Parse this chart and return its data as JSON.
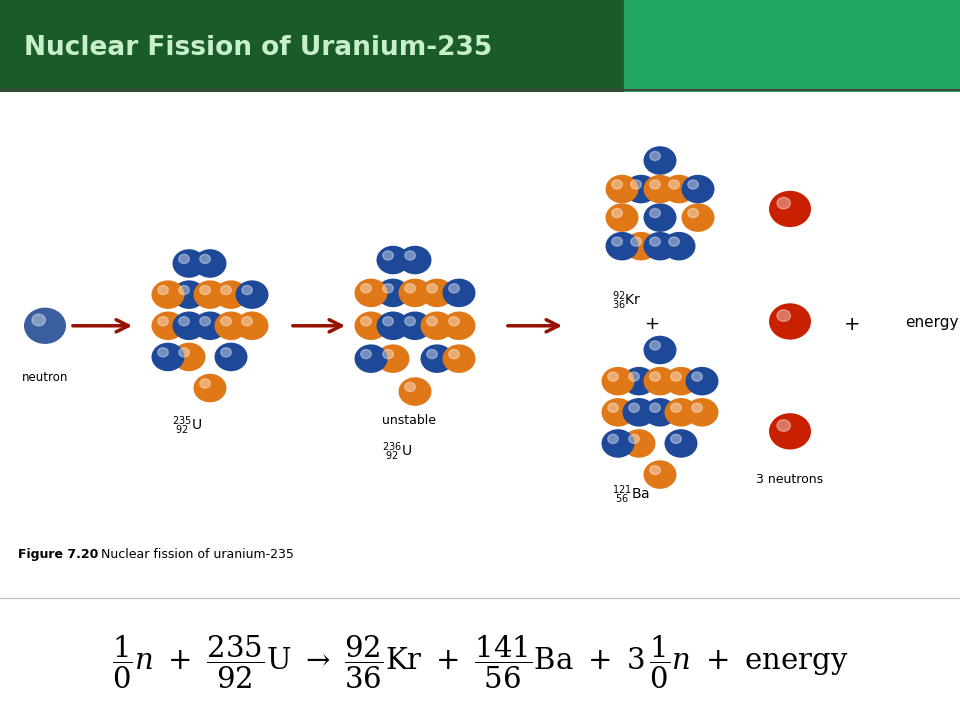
{
  "title": "Nuclear Fission of Uranium-235",
  "title_color": "#c8f0c8",
  "header_bg_left": "#1a5c28",
  "header_bg_right": "#22a860",
  "bg_color": "#ffffff",
  "neutron_color": "#3a5fa0",
  "orange_color": "#e07818",
  "blue_color": "#1e4898",
  "red_color": "#c82000",
  "arrow_color": "#991100",
  "text_color": "#000000",
  "figure_caption_bold": "Figure 7.20",
  "figure_caption_rest": "  Nuclear fission of uranium-235"
}
